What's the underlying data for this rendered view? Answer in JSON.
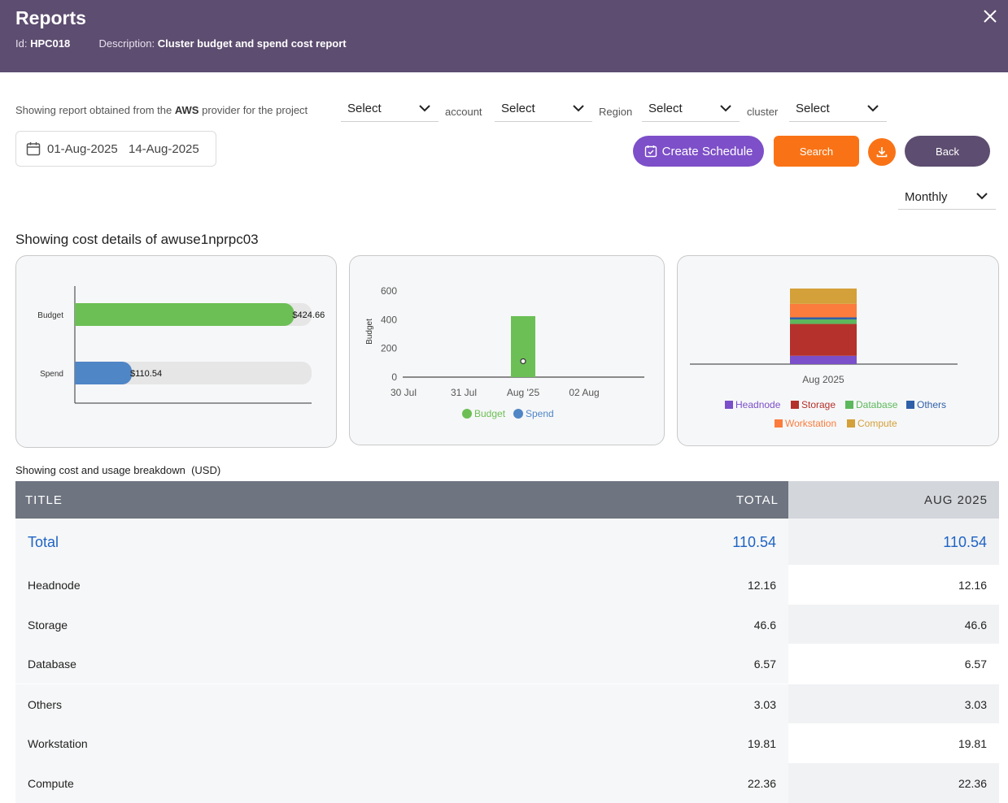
{
  "header": {
    "title": "Reports",
    "id_label": "Id:",
    "id_value": "HPC018",
    "desc_label": "Description:",
    "desc_value": "Cluster budget and spend cost report"
  },
  "filters": {
    "intro_prefix": "Showing report obtained from the",
    "provider": "AWS",
    "intro_suffix": "provider for the project",
    "project_select": "Select",
    "account_label": "account",
    "account_select": "Select",
    "region_label": "Region",
    "region_select": "Select",
    "cluster_label": "cluster",
    "cluster_select": "Select",
    "start_date": "01-Aug-2025",
    "end_date": "14-Aug-2025"
  },
  "actions": {
    "create_schedule": "Create Schedule",
    "search": "Search",
    "back": "Back",
    "period": "Monthly"
  },
  "cost_heading": "Showing cost details of awuse1nprpc03",
  "breakdown_heading": "Showing cost and usage breakdown  (USD)",
  "chart_data": [
    {
      "type": "bar",
      "orientation": "horizontal",
      "categories": [
        "Budget",
        "Spend"
      ],
      "values": [
        424.66,
        110.54
      ],
      "value_labels": [
        "$424.66",
        "$110.54"
      ],
      "colors": [
        "#6cbf55",
        "#4f86c6"
      ]
    },
    {
      "type": "bar",
      "ylabel": "Budget",
      "yticks": [
        0,
        200,
        400,
        600
      ],
      "ylim": [
        0,
        600
      ],
      "xticks": [
        "30 Jul",
        "31 Jul",
        "Aug '25",
        "02 Aug"
      ],
      "series": [
        {
          "name": "Budget",
          "x": "Aug '25",
          "value": 424.66,
          "color": "#6cbf55"
        },
        {
          "name": "Spend",
          "x": "Aug '25",
          "value": 110.54,
          "color": "#4f86c6"
        }
      ],
      "legend": "bottom"
    },
    {
      "type": "bar",
      "stacked": true,
      "categories": [
        "Aug 2025"
      ],
      "series": [
        {
          "name": "Headnode",
          "values": [
            12.16
          ],
          "color": "#7a4fc9"
        },
        {
          "name": "Storage",
          "values": [
            46.6
          ],
          "color": "#b5312b"
        },
        {
          "name": "Database",
          "values": [
            6.57
          ],
          "color": "#5cb85c"
        },
        {
          "name": "Others",
          "values": [
            3.03
          ],
          "color": "#2f5fa8"
        },
        {
          "name": "Workstation",
          "values": [
            19.81
          ],
          "color": "#fb7c3c"
        },
        {
          "name": "Compute",
          "values": [
            22.36
          ],
          "color": "#d4a039"
        }
      ],
      "legend": "bottom"
    }
  ],
  "table": {
    "headers": {
      "title": "TITLE",
      "total": "TOTAL",
      "month": "AUG 2025"
    },
    "total_row": {
      "name": "Total",
      "total": "110.54",
      "month": "110.54"
    },
    "rows": [
      {
        "name": "Headnode",
        "total": "12.16",
        "month": "12.16"
      },
      {
        "name": "Storage",
        "total": "46.6",
        "month": "46.6"
      },
      {
        "name": "Database",
        "total": "6.57",
        "month": "6.57"
      },
      {
        "name": "Others",
        "total": "3.03",
        "month": "3.03"
      },
      {
        "name": "Workstation",
        "total": "19.81",
        "month": "19.81"
      },
      {
        "name": "Compute",
        "total": "22.36",
        "month": "22.36"
      }
    ]
  }
}
